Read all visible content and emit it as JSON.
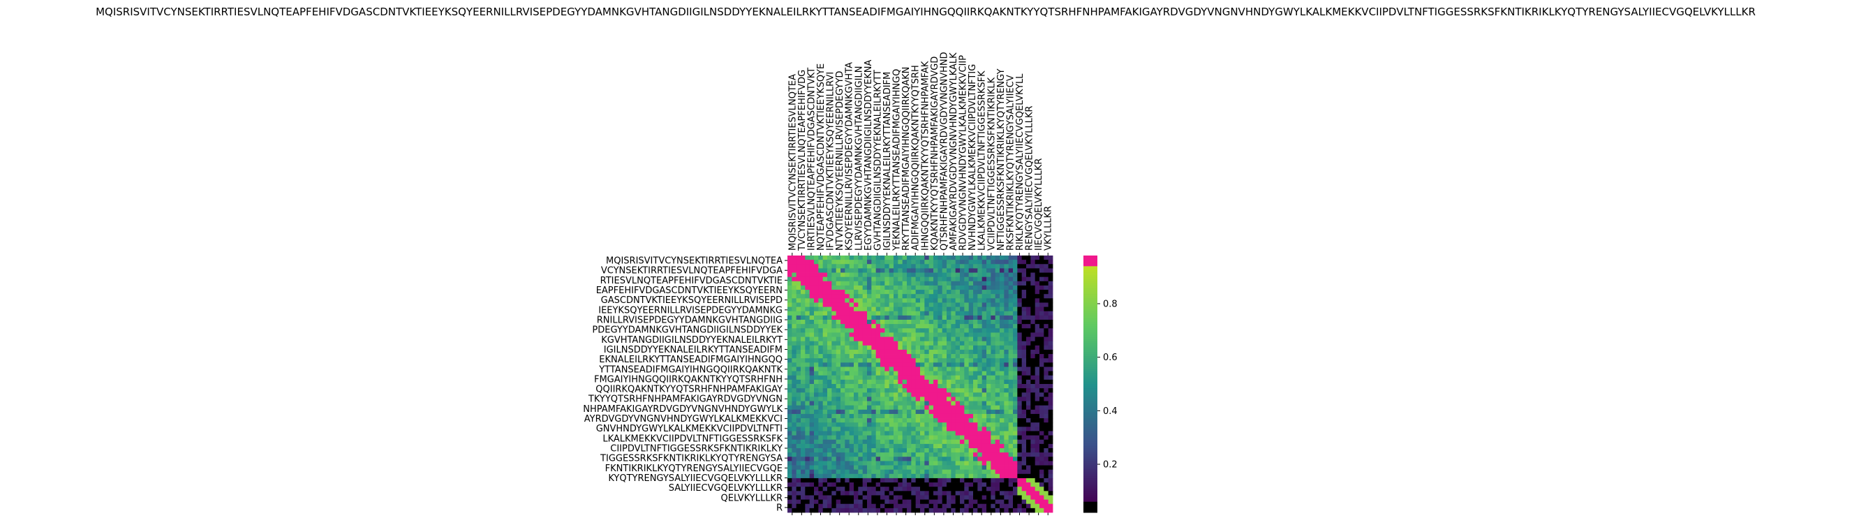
{
  "title": "MQISRISVITVCYNSEKTIRRTIESVLNQTEAPFEHIFVDGASCDNTVKTIEEYKSQYEERNILLRVISEPDEGYYDAMNKGVHTANGDIIGILNSDDYYEKNALEILRKYTTANSEADIFMGAIYIHNGQQIIRKQAKNTKYYQTSRHFNHPAMFAKIGAYRDVGDYVNGNVHNDYGWYLKALKMEKKVCIIPDVLTNFTIGGESSRKSFKNTIKRIKLKYQTYRENGYSALYIIECVGQELVKYLLLKR",
  "chart_data": {
    "type": "heatmap",
    "title": "MQISRISVITVCYNSEKTIRRTIESVLNQTEAPFEHIFVDGASCDNTVKTIEEYKSQYEERNILLRVISEPDEGYYDAMNKGVHTANGDIIGILNSDDYYEKNALEILRKYTTANSEADIFMGAIYIHNGQQIIRKQAKNTKYYQTSRHFNHPAMFAKIGAYRDVGDYVNGNVHNDYGWYLKALKMEKKVCIIPDVLTNFTIGGESSRKSFKNTIKRIKLKYQTYRENGYSALYIIECVGQELVKYLLLKR",
    "x_tick_labels": [
      "MQISRISVITVCYNSEKTIRRTIESVLNQTEA",
      "TVCYNSEKTIRRTIESVLNQTEAPFEHIFVDG",
      "IRRTIESVLNQTEAPFEHIFVDGASCDNTVKT",
      "NQTEAPFEHIFVDGASCDNTVKTIEEYKSQYE",
      "IFVDGASCDNTVKTIEEYKSQYEERNILLRVI",
      "NTVKTIEEYKSQYEERNILLRVISEPDEGYYD",
      "KSQYEERNILLRVISEPDEGYYDAMNKGVHTA",
      "LLRVISEPDEGYYDAMNKGVHTANGDIIGILN",
      "EGYYDAMNKGVHTANGDIIGILNSDDYYEKNA",
      "GVHTANGDIIGILNSDDYYEKNALEILRKYTT",
      "IGILNSDDYYEKNALEILRKYTTANSEADIFM",
      "YEKNALEILRKYTTANSEADIFMGAIYIHNGQ",
      "RKYTTANSEADIFMGAIYIHNGQQIIRKQAKN",
      "ADIFMGAIYIHNGQQIIRKQAKNTKYYQTSRH",
      "IHNGQQIIRKQAKNTKYYQTSRHFNHPAMFAK",
      "KQAKNTKYYQTSRHFNHPAMFAKIGAYRDVGD",
      "QTSRHFNHPAMFAKIGAYRDVGDYVNGNVHND",
      "AMFAKIGAYRDVGDYVNGNVHNDYGWYLKALK",
      "RDVGDYVNGNVHNDYGWYLKALKMEKKVCIIP",
      "NVHNDYGWYLKALKMEKKVCIIPDVLTNFTIG",
      "LKALKMEKKVCIIPDVLTNFTIGGESSRKSFK",
      "VCIIPDVLTNFTIGGESSRKSFKNTIKRIKLK",
      "NFTIGGESSRKSFKNTIKRIKLKYQTYRENGY",
      "RKSFKNTIKRIKLKYQTYRENGYSALYIIECV",
      "RIKLKYQTYRENGYSALYIIECVGQELVKYLL",
      "RENGYSALYIIECVGQELVKYLLLKR",
      "IIECVGQELVKYLLLKR",
      "VKYLLLKR"
    ],
    "y_tick_labels": [
      "MQISRISVITVCYNSEKTIRRTIESVLNQTEA",
      "VCYNSEKTIRRTIESVLNQTEAPFEHIFVDGA",
      "RTIESVLNQTEAPFEHIFVDGASCDNTVKTIE",
      "EAPFEHIFVDGASCDNTVKTIEEYKSQYEERN",
      "GASCDNTVKTIEEYKSQYEERNILLRVISEPD",
      "IEEYKSQYEERNILLRVISEPDEGYYDAMNKG",
      "RNILLRVISEPDEGYYDAMNKGVHTANGDIIG",
      "PDEGYYDAMNKGVHTANGDIIGILNSDDYYEK",
      "KGVHTANGDIIGILNSDDYYEKNALEILRKYT",
      "IGILNSDDYYEKNALEILRKYTTANSEADIFM",
      "EKNALEILRKYTTANSEADIFMGAIYIHNGQQ",
      "YTTANSEADIFMGAIYIHNGQQIIRKQAKNTK",
      "FMGAIYIHNGQQIIRKQAKNTKYYQTSRHFNH",
      "QQIIRKQAKNTKYYQTSRHFNHPAMFAKIGAY",
      "TKYYQTSRHFNHPAMFAKIGAYRDVGDYVNGN",
      "NHPAMFAKIGAYRDVGDYVNGNVHNDYGWYLK",
      "AYRDVGDYVNGNVHNDYGWYLKALKMEKKVCI",
      "GNVHNDYGWYLKALKMEKKVCIIPDVLTNFTI",
      "LKALKMEKKVCIIPDVLTNFTIGGESSRKSFK",
      "CIIPDVLTNFTIGGESSRKSFKNTIKRIKLKY",
      "TIGGESSRKSFKNTIKRIKLKYQTYRENGYSA",
      "FKNTIKRIKLKYQTYRENGYSALYIIECVGQE",
      "KYQTYRENGYSALYIIECVGQELVKYLLLKR",
      "SALYIIECVGQELVKYLLLKR",
      "QELVKYLLLKR",
      "R"
    ],
    "n": 60,
    "colorbar": {
      "ticks": [
        0.2,
        0.4,
        0.6,
        0.8
      ],
      "range": [
        0.02,
        0.98
      ]
    },
    "colors": {
      "high": "#f0198c",
      "low": "#000000",
      "cmap": [
        "#440154",
        "#3b528b",
        "#21918c",
        "#5ec962",
        "#bddf26"
      ]
    },
    "grid": false
  }
}
